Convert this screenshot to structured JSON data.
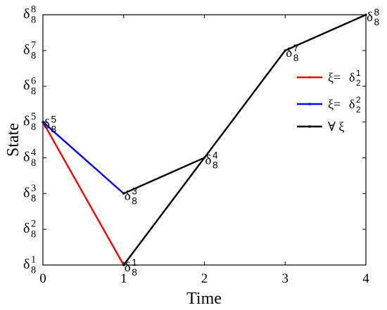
{
  "chart_data": {
    "type": "line",
    "xlabel": "Time",
    "ylabel": "State",
    "xlim": [
      0,
      4
    ],
    "ylim": [
      1,
      8
    ],
    "x_ticks": [
      {
        "value": 0,
        "label": "0"
      },
      {
        "value": 1,
        "label": "1"
      },
      {
        "value": 2,
        "label": "2"
      },
      {
        "value": 3,
        "label": "3"
      },
      {
        "value": 4,
        "label": "4"
      }
    ],
    "y_ticks": [
      {
        "value": 1,
        "base": "δ",
        "sub": "8",
        "sup": "1"
      },
      {
        "value": 2,
        "base": "δ",
        "sub": "8",
        "sup": "2"
      },
      {
        "value": 3,
        "base": "δ",
        "sub": "8",
        "sup": "3"
      },
      {
        "value": 4,
        "base": "δ",
        "sub": "8",
        "sup": "4"
      },
      {
        "value": 5,
        "base": "δ",
        "sub": "8",
        "sup": "5"
      },
      {
        "value": 6,
        "base": "δ",
        "sub": "8",
        "sup": "6"
      },
      {
        "value": 7,
        "base": "δ",
        "sub": "8",
        "sup": "7"
      },
      {
        "value": 8,
        "base": "δ",
        "sub": "8",
        "sup": "8"
      }
    ],
    "grid": false,
    "legend_position": "right",
    "series": [
      {
        "legend": {
          "prefix": "ξ=",
          "base": "δ",
          "sub": "2",
          "sup": "1"
        },
        "color": "#ff0000",
        "x": [
          0,
          1
        ],
        "y": [
          5,
          1
        ]
      },
      {
        "legend": {
          "prefix": "ξ=",
          "base": "δ",
          "sub": "2",
          "sup": "2"
        },
        "color": "#0000ff",
        "x": [
          0,
          1
        ],
        "y": [
          5,
          3
        ]
      },
      {
        "legend": {
          "prefix": "∀ ξ",
          "base": "",
          "sub": "",
          "sup": ""
        },
        "color": "#000000",
        "x": [
          1,
          1,
          2,
          3,
          4
        ],
        "y": [
          1,
          3,
          4,
          7,
          8
        ],
        "segments": [
          [
            [
              1,
              1
            ],
            [
              2,
              4
            ]
          ],
          [
            [
              1,
              3
            ],
            [
              2,
              4
            ]
          ],
          [
            [
              2,
              4
            ],
            [
              3,
              7
            ]
          ],
          [
            [
              3,
              7
            ],
            [
              4,
              8
            ]
          ]
        ]
      }
    ],
    "point_labels": [
      {
        "x": 0,
        "y": 5,
        "base": "δ",
        "sub": "8",
        "sup": "5"
      },
      {
        "x": 1,
        "y": 1,
        "base": "δ",
        "sub": "8",
        "sup": "1"
      },
      {
        "x": 1,
        "y": 3,
        "base": "δ",
        "sub": "8",
        "sup": "3"
      },
      {
        "x": 2,
        "y": 4,
        "base": "δ",
        "sub": "8",
        "sup": "4"
      },
      {
        "x": 3,
        "y": 7,
        "base": "δ",
        "sub": "8",
        "sup": "7"
      },
      {
        "x": 4,
        "y": 8,
        "base": "δ",
        "sub": "8",
        "sup": "8"
      }
    ]
  }
}
